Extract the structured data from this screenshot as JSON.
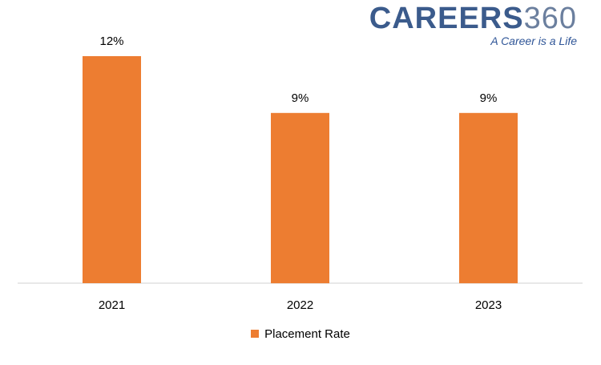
{
  "logo": {
    "word": "CAREERS",
    "number": "360",
    "tagline": "A Career is a Life"
  },
  "colors": {
    "bar": "#ed7d31",
    "axis": "#d9d9d9",
    "text": "#000000"
  },
  "chart_data": {
    "type": "bar",
    "categories": [
      "2021",
      "2022",
      "2023"
    ],
    "series": [
      {
        "name": "Placement Rate",
        "values": [
          12,
          9,
          9
        ],
        "labels": [
          "12%",
          "9%",
          "9%"
        ]
      }
    ],
    "ylim": [
      0,
      12
    ],
    "grid": false,
    "legend": "bottom-center"
  }
}
